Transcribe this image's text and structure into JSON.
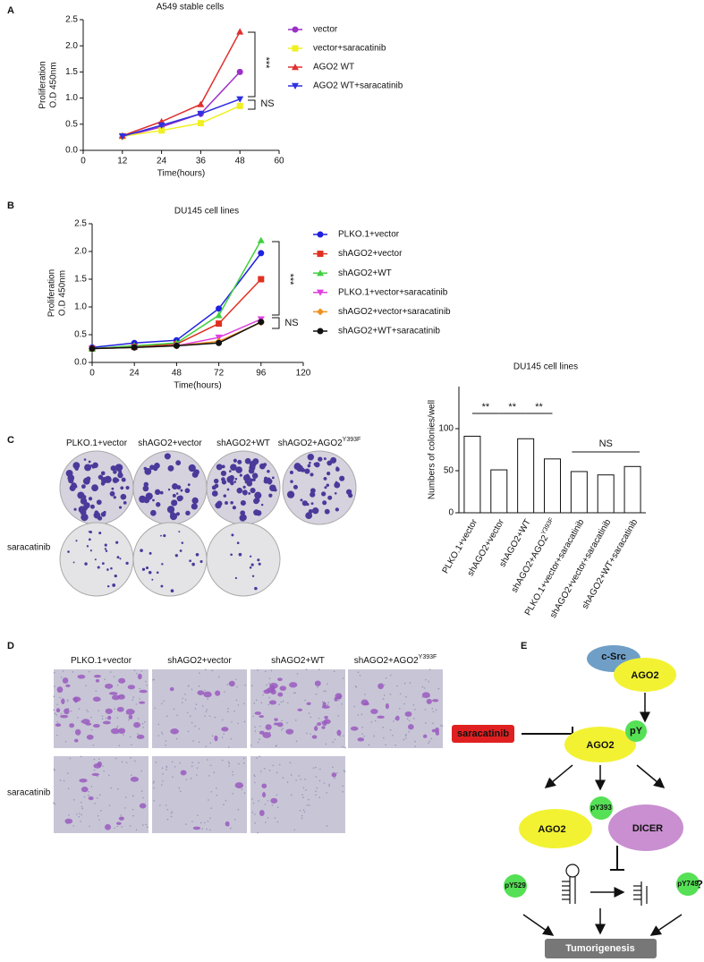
{
  "chart_data": [
    {
      "type": "line",
      "title": "A549 stable cells",
      "xlabel": "Time(hours)",
      "ylabel": [
        "Proliferation",
        "O.D 450nm"
      ],
      "x": [
        12,
        24,
        36,
        48
      ],
      "xlim": [
        0,
        60
      ],
      "xticks": [
        0,
        12,
        24,
        36,
        48,
        60
      ],
      "ylim": [
        0,
        2.5
      ],
      "yticks": [
        {
          "value": 0,
          "label": "0.0"
        },
        0.5,
        {
          "value": 1,
          "label": "1.0"
        },
        1.5,
        {
          "value": 2,
          "label": "2.0"
        },
        2.5
      ],
      "series": [
        {
          "name": "vector",
          "color": "#9b30c8",
          "marker": "circle",
          "values": [
            0.26,
            0.45,
            0.7,
            1.5
          ]
        },
        {
          "name": "vector+saracatinib",
          "color": "#f0f020",
          "marker": "square",
          "values": [
            0.27,
            0.38,
            0.52,
            0.85
          ]
        },
        {
          "name": "AGO2 WT",
          "color": "#e03030",
          "marker": "triangle",
          "values": [
            0.28,
            0.55,
            0.88,
            2.27
          ]
        },
        {
          "name": "AGO2 WT+saracatinib",
          "color": "#3030e0",
          "marker": "triangle-down",
          "values": [
            0.27,
            0.48,
            0.7,
            0.98
          ]
        }
      ],
      "annotations": [
        "***",
        "NS"
      ]
    },
    {
      "type": "line",
      "title": "DU145 cell lines",
      "xlabel": "Time(hours)",
      "ylabel": [
        "Proliferation",
        "O.D 450nm"
      ],
      "x": [
        0,
        24,
        48,
        72,
        96
      ],
      "xlim": [
        0,
        120
      ],
      "xticks": [
        0,
        24,
        48,
        72,
        96,
        120
      ],
      "ylim": [
        0,
        2.5
      ],
      "yticks": [
        {
          "value": 0,
          "label": "0.0"
        },
        0.5,
        {
          "value": 1,
          "label": "1.0"
        },
        1.5,
        {
          "value": 2,
          "label": "2.0"
        },
        2.5
      ],
      "series": [
        {
          "name": "PLKO.1+vector",
          "color": "#2020e0",
          "marker": "circle",
          "values": [
            0.27,
            0.35,
            0.4,
            0.97,
            1.97
          ]
        },
        {
          "name": "shAGO2+vector",
          "color": "#e03020",
          "marker": "square",
          "values": [
            0.25,
            0.28,
            0.33,
            0.7,
            1.5
          ]
        },
        {
          "name": "shAGO2+WT",
          "color": "#40d040",
          "marker": "triangle",
          "values": [
            0.25,
            0.3,
            0.35,
            0.85,
            2.2
          ]
        },
        {
          "name": "PLKO.1+vector+saracatinib",
          "color": "#e040e0",
          "marker": "triangle-down",
          "values": [
            0.25,
            0.27,
            0.3,
            0.45,
            0.78
          ]
        },
        {
          "name": "shAGO2+vector+saracatinib",
          "color": "#f09020",
          "marker": "diamond",
          "values": [
            0.25,
            0.27,
            0.3,
            0.38,
            0.72
          ]
        },
        {
          "name": "shAGO2+WT+saracatinib",
          "color": "#111111",
          "marker": "circle",
          "values": [
            0.25,
            0.27,
            0.3,
            0.35,
            0.73
          ]
        }
      ],
      "annotations": [
        "***",
        "NS"
      ]
    },
    {
      "type": "bar",
      "title": "DU145 cell lines",
      "ylabel": "Numbers of colonies/well",
      "categories": [
        "PLKO.1+vector",
        "shAGO2+vector",
        "shAGO2+WT",
        "shAGO2+AGO2",
        "PLKO.1+vector+saracatinib",
        "shAGO2+vector+saracatinib",
        "shAGO2+WT+saracatinib"
      ],
      "category_sups": [
        null,
        null,
        null,
        "Y393F",
        null,
        null,
        null
      ],
      "values": [
        91,
        51,
        88,
        64,
        49,
        45,
        55
      ],
      "color": "#ffffff",
      "ylim": [
        0,
        150
      ],
      "yticks": [
        0,
        50,
        100
      ],
      "annotations": [
        "**",
        "**",
        "**",
        "NS"
      ]
    }
  ],
  "figure": {
    "panel_labels": [
      "A",
      "B",
      "C",
      "D",
      "E"
    ],
    "colony": {
      "columns": [
        "PLKO.1+vector",
        "shAGO2+vector",
        "shAGO2+WT",
        "shAGO2+AGO2"
      ],
      "column_sup": "Y393F",
      "row_label": "saracatinib"
    },
    "invasion": {
      "columns": [
        "PLKO.1+vector",
        "shAGO2+vector",
        "shAGO2+WT",
        "shAGO2+AGO2"
      ],
      "column_sup": "Y393F",
      "row_label": "saracatinib"
    },
    "pathway": {
      "nodes": [
        "c-Src",
        "AGO2",
        "saracatinib",
        "AGO2",
        "pY",
        "AGO2",
        "pY393",
        "DICER",
        "pY529",
        "pY749",
        "?",
        "Tumorigenesis"
      ]
    }
  }
}
